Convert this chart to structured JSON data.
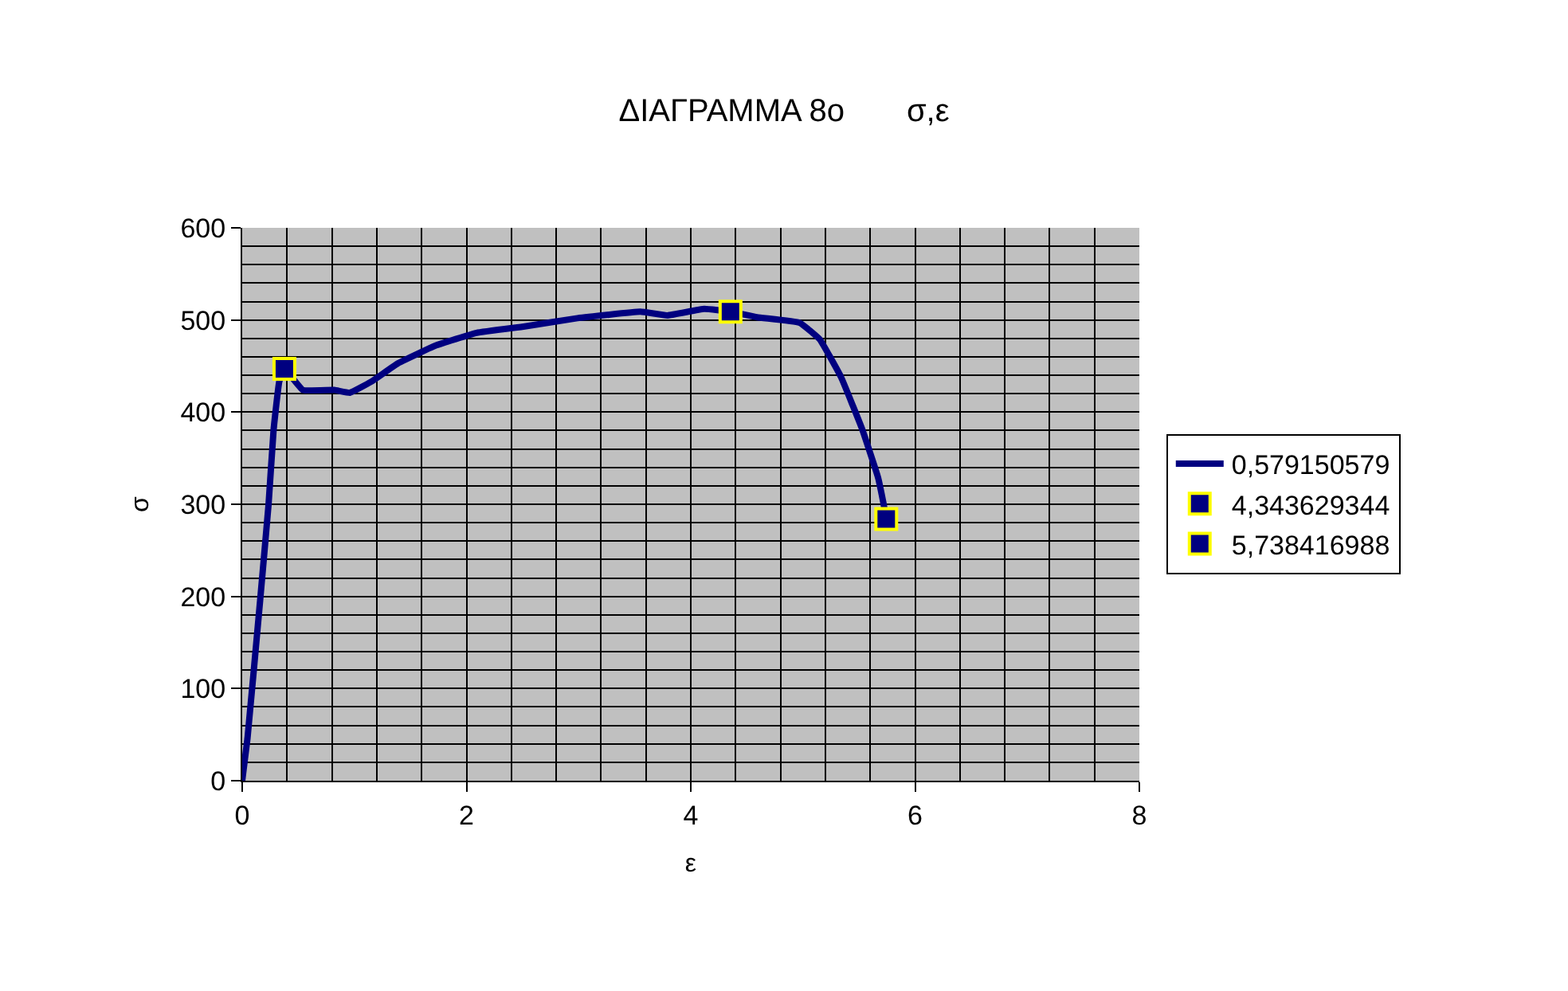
{
  "chart_data": {
    "type": "line",
    "title": "ΔΙΑΓΡΑΜΜΑ 8ο       σ,ε",
    "xlabel": "ε",
    "ylabel": "σ",
    "xlim": [
      0,
      8
    ],
    "xticks": [
      0,
      2,
      4,
      6,
      8
    ],
    "ylim": [
      0,
      600
    ],
    "yticks": [
      0,
      100,
      200,
      300,
      400,
      500,
      600
    ],
    "grid": true,
    "legend": "right",
    "series": [
      {
        "name": "0,579150579",
        "color": "#000080",
        "marker": "none",
        "x": [
          0,
          0.047,
          0.16,
          0.235,
          0.28,
          0.33,
          0.376,
          0.54,
          0.82,
          0.96,
          1.15,
          1.39,
          1.72,
          2.09,
          2.52,
          2.99,
          3.55,
          3.79,
          4.12,
          4.354,
          4.59,
          4.97,
          5.15,
          5.34,
          5.53,
          5.67,
          5.72,
          5.743
        ],
        "values": [
          0,
          46,
          196,
          300,
          381,
          433,
          447,
          424,
          424,
          421,
          433,
          453,
          472,
          486,
          493,
          502,
          509,
          505,
          512,
          509,
          503,
          497,
          479,
          438,
          381,
          329,
          300,
          284
        ]
      },
      {
        "name": "4,343629344",
        "color": "#000080",
        "type": "scatter",
        "marker": "square",
        "x": [
          0.376,
          4.354
        ],
        "values": [
          447,
          509
        ]
      },
      {
        "name": "5,738416988",
        "color": "#000080",
        "type": "scatter",
        "marker": "square",
        "x": [
          5.743
        ],
        "values": [
          284
        ]
      }
    ]
  }
}
